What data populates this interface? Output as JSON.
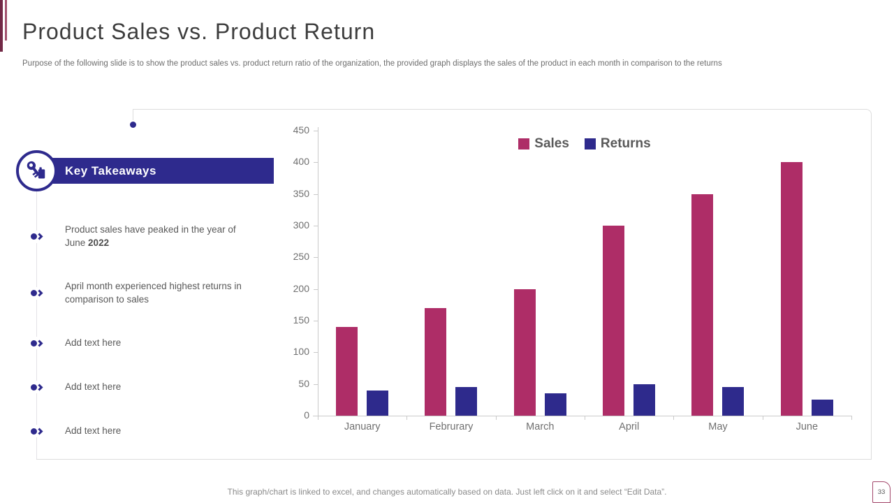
{
  "slide": {
    "title": "Product Sales vs. Product Return",
    "subtitle": "Purpose of the following slide is to show the product sales vs. product return ratio of the organization, the provided graph displays the sales of the product in each month in comparison to the returns",
    "footer_note": "This graph/chart is linked to excel,  and changes automatically based on data. Just left click on it and select “Edit Data”.",
    "page_number": "33"
  },
  "key_takeaways": {
    "header": "Key Takeaways",
    "icon": "keys-icon",
    "items": [
      {
        "text": "Product sales have peaked in the year of June",
        "bold": "2022"
      },
      {
        "text": "April month experienced highest returns in comparison to sales",
        "bold": ""
      },
      {
        "text": "Add text here",
        "bold": ""
      },
      {
        "text": "Add text here",
        "bold": ""
      },
      {
        "text": "Add text here",
        "bold": ""
      }
    ]
  },
  "chart_data": {
    "type": "bar",
    "title": "",
    "categories": [
      "January",
      "Februrary",
      "March",
      "April",
      "May",
      "June"
    ],
    "series": [
      {
        "name": "Sales",
        "color": "#ae2d67",
        "values": [
          140,
          170,
          200,
          300,
          350,
          400
        ]
      },
      {
        "name": "Returns",
        "color": "#2e2a8c",
        "values": [
          40,
          45,
          35,
          50,
          45,
          25
        ]
      }
    ],
    "xlabel": "",
    "ylabel": "",
    "ylim": [
      0,
      450
    ],
    "ytick_step": 50,
    "legend_position": "top",
    "grid": false
  },
  "colors": {
    "accent_indigo": "#2e2a8d",
    "accent_magenta": "#ae2d67",
    "accent_maroon": "#722946",
    "frame_gray": "#dcdcdc"
  }
}
